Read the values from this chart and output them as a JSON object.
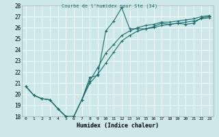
{
  "title": "Courbe de l'humidex pour Ste (34)",
  "xlabel": "Humidex (Indice chaleur)",
  "bg_color": "#cce8e8",
  "line_color": "#1a6b6b",
  "grid_color": "#ffffff",
  "xlim": [
    -0.5,
    23.5
  ],
  "ylim": [
    18,
    28
  ],
  "xtick_labels": [
    "0",
    "1",
    "2",
    "3",
    "4",
    "5",
    "6",
    "7",
    "8",
    "9",
    "10",
    "11",
    "12",
    "13",
    "14",
    "15",
    "16",
    "17",
    "18",
    "19",
    "20",
    "21",
    "22",
    "23"
  ],
  "xtick_vals": [
    0,
    1,
    2,
    3,
    4,
    5,
    6,
    7,
    8,
    9,
    10,
    11,
    12,
    13,
    14,
    15,
    16,
    17,
    18,
    19,
    20,
    21,
    22,
    23
  ],
  "ytick_vals": [
    18,
    19,
    20,
    21,
    22,
    23,
    24,
    25,
    26,
    27,
    28
  ],
  "series1_x": [
    0,
    1,
    2,
    3,
    4,
    5,
    6,
    7,
    8,
    9,
    10,
    11,
    12,
    13,
    14,
    15,
    16,
    17,
    18,
    19,
    20,
    21,
    22,
    23
  ],
  "series1_y": [
    20.7,
    19.9,
    19.6,
    19.5,
    18.7,
    18.0,
    18.0,
    19.5,
    21.5,
    21.7,
    25.7,
    26.6,
    27.8,
    25.9,
    25.9,
    25.9,
    26.1,
    26.4,
    26.3,
    26.4,
    26.3,
    26.4,
    26.9,
    27.0
  ],
  "series2_x": [
    0,
    1,
    2,
    3,
    4,
    5,
    6,
    7,
    8,
    9,
    10,
    11,
    12,
    13,
    14,
    15,
    16,
    17,
    18,
    19,
    20,
    21,
    22,
    23
  ],
  "series2_y": [
    20.7,
    19.9,
    19.6,
    19.5,
    18.7,
    18.0,
    18.0,
    19.5,
    21.2,
    22.4,
    23.7,
    24.5,
    25.3,
    25.7,
    26.0,
    26.2,
    26.3,
    26.5,
    26.5,
    26.6,
    26.7,
    26.8,
    27.0,
    27.1
  ],
  "series3_x": [
    0,
    1,
    2,
    3,
    4,
    5,
    6,
    7,
    8,
    9,
    10,
    11,
    12,
    13,
    14,
    15,
    16,
    17,
    18,
    19,
    20,
    21,
    22,
    23
  ],
  "series3_y": [
    20.7,
    19.9,
    19.6,
    19.5,
    18.7,
    18.0,
    18.0,
    19.5,
    21.0,
    21.8,
    22.8,
    23.8,
    24.8,
    25.3,
    25.7,
    25.9,
    26.0,
    26.2,
    26.3,
    26.4,
    26.5,
    26.6,
    26.8,
    26.9
  ],
  "lw": 0.8,
  "ms": 2.5
}
